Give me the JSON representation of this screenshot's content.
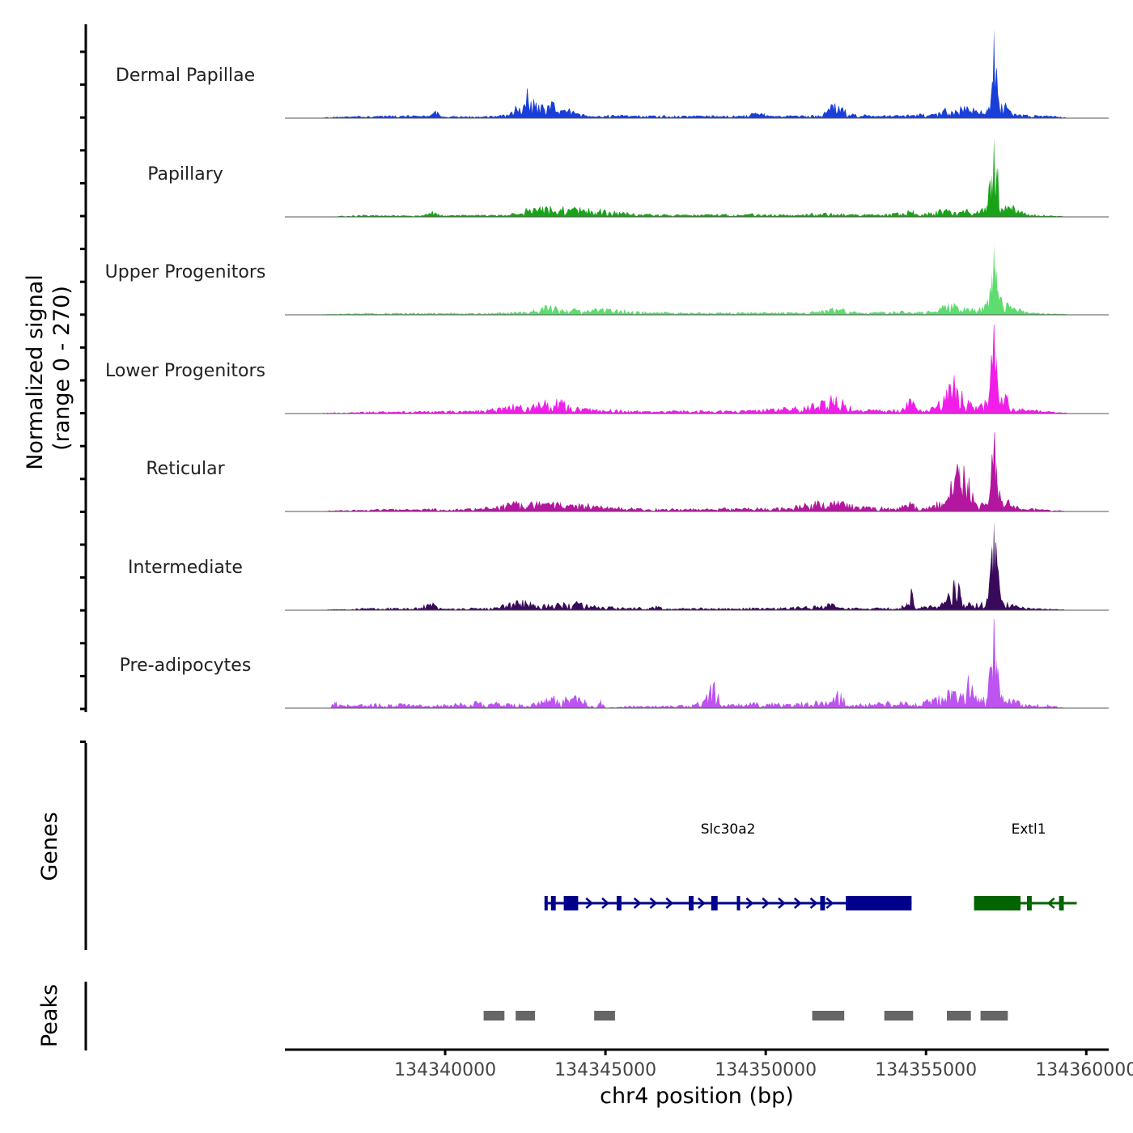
{
  "chart_data": {
    "type": "area",
    "title": "",
    "xlabel": "chr4 position (bp)",
    "ylabel_line1": "Normalized signal",
    "ylabel_line2": "(range 0 - 270)",
    "ylim": [
      0,
      270
    ],
    "xlim": [
      134335000,
      134360700
    ],
    "x_ticks": [
      134340000,
      134345000,
      134350000,
      134355000,
      134360000
    ],
    "x_tick_labels": [
      "134340000",
      "134345000",
      "134350000",
      "134355000",
      "134360000"
    ],
    "series": [
      {
        "name": "Dermal Papillae",
        "color": "#1a3fd9",
        "baseline": 3,
        "x": [
          134336200,
          134337300,
          134338400,
          134339500,
          134339700,
          134339900,
          134341200,
          134342000,
          134342200,
          134342550,
          134342800,
          134343100,
          134343300,
          134343600,
          134343900,
          134344200,
          134344500,
          134345200,
          134346200,
          134347100,
          134348200,
          134349200,
          134349950,
          134350300,
          134351200,
          134351800,
          134352100,
          134352600,
          134353300,
          134354200,
          134355200,
          134355600,
          134355900,
          134356300,
          134356600,
          134356900,
          134357060,
          134357120,
          134357200,
          134357300,
          134357450,
          134357700,
          134358200,
          134358900,
          134359400
        ],
        "values": [
          0,
          3,
          6,
          4,
          24,
          2,
          4,
          8,
          30,
          72,
          38,
          32,
          44,
          18,
          26,
          10,
          4,
          6,
          5,
          4,
          5,
          4,
          16,
          4,
          6,
          8,
          44,
          12,
          5,
          8,
          10,
          26,
          16,
          36,
          18,
          30,
          112,
          270,
          150,
          30,
          44,
          12,
          6,
          4,
          0
        ]
      },
      {
        "name": "Papillary",
        "color": "#1aa319",
        "baseline": 2,
        "x": [
          134336600,
          134337500,
          134339300,
          134339600,
          134339900,
          134341800,
          134342200,
          134342500,
          134343000,
          134343600,
          134344000,
          134344400,
          134344800,
          134346300,
          134347800,
          134349000,
          134350100,
          134350900,
          134351700,
          134352600,
          134353400,
          134354300,
          134354600,
          134354800,
          134355600,
          134355900,
          134356300,
          134356600,
          134356900,
          134357060,
          134357120,
          134357200,
          134357350,
          134357650,
          134357900,
          134358300,
          134359400
        ],
        "values": [
          0,
          4,
          2,
          16,
          3,
          4,
          10,
          20,
          24,
          26,
          26,
          20,
          18,
          6,
          5,
          6,
          7,
          4,
          10,
          6,
          5,
          10,
          22,
          4,
          22,
          12,
          18,
          14,
          38,
          128,
          240,
          150,
          20,
          32,
          14,
          6,
          0
        ]
      },
      {
        "name": "Upper Progenitors",
        "color": "#5ddc6f",
        "baseline": 2,
        "x": [
          134336200,
          134337500,
          134339000,
          134340800,
          134342300,
          134342800,
          134343100,
          134343300,
          134343600,
          134344000,
          134344300,
          134344800,
          134346300,
          134347800,
          134349000,
          134350500,
          134351200,
          134351800,
          134352200,
          134352700,
          134353500,
          134354300,
          134354600,
          134355400,
          134355700,
          134356000,
          134356300,
          134356600,
          134356900,
          134357060,
          134357120,
          134357200,
          134357400,
          134357700,
          134358000,
          134358300,
          134359400
        ],
        "values": [
          0,
          3,
          4,
          3,
          6,
          12,
          22,
          30,
          14,
          18,
          10,
          16,
          6,
          5,
          4,
          6,
          4,
          12,
          18,
          8,
          6,
          8,
          4,
          14,
          38,
          18,
          16,
          12,
          30,
          128,
          214,
          140,
          32,
          22,
          10,
          5,
          0
        ]
      },
      {
        "name": "Lower Progenitors",
        "color": "#f01ee8",
        "baseline": 2,
        "x": [
          134336200,
          134337700,
          134339200,
          134340900,
          134341900,
          134342200,
          134342600,
          134343100,
          134343300,
          134343600,
          134343900,
          134344300,
          134344800,
          134346300,
          134347800,
          134349000,
          134350700,
          134351500,
          134351800,
          134352100,
          134352400,
          134352800,
          134353700,
          134354300,
          134354500,
          134354900,
          134355300,
          134355600,
          134355900,
          134356300,
          134356600,
          134356900,
          134357060,
          134357120,
          134357200,
          134357400,
          134357550,
          134357700,
          134358100,
          134358600,
          134359400
        ],
        "values": [
          0,
          4,
          5,
          6,
          16,
          24,
          14,
          36,
          22,
          44,
          20,
          14,
          10,
          6,
          8,
          6,
          14,
          24,
          38,
          48,
          32,
          12,
          8,
          16,
          40,
          6,
          20,
          50,
          98,
          34,
          14,
          40,
          150,
          268,
          180,
          30,
          60,
          16,
          10,
          6,
          0
        ]
      },
      {
        "name": "Reticular",
        "color": "#b3179f",
        "baseline": 2,
        "x": [
          134336300,
          134337800,
          134339200,
          134339600,
          134339900,
          134341200,
          134341900,
          134342200,
          134342600,
          134343100,
          134343300,
          134343600,
          134343900,
          134344300,
          134344800,
          134346300,
          134347800,
          134349000,
          134350700,
          134351500,
          134351800,
          134352200,
          134352600,
          134353200,
          134354200,
          134354500,
          134354800,
          134355500,
          134355800,
          134356050,
          134356300,
          134356550,
          134356850,
          134357060,
          134357120,
          134357200,
          134357400,
          134357550,
          134357750,
          134358100,
          134359300
        ],
        "values": [
          0,
          5,
          4,
          10,
          3,
          8,
          20,
          24,
          22,
          26,
          20,
          30,
          22,
          20,
          14,
          6,
          6,
          8,
          10,
          24,
          30,
          26,
          22,
          10,
          12,
          26,
          4,
          28,
          76,
          140,
          90,
          18,
          26,
          140,
          220,
          150,
          18,
          30,
          14,
          8,
          0
        ]
      },
      {
        "name": "Intermediate",
        "color": "#3a0a5a",
        "baseline": 2,
        "x": [
          134336300,
          134337800,
          134339000,
          134339600,
          134339900,
          134341500,
          134342200,
          134342500,
          134342800,
          134343200,
          134343700,
          134344100,
          134344400,
          134344800,
          134346300,
          134346600,
          134346900,
          134347800,
          134349100,
          134350500,
          134351700,
          134352000,
          134352300,
          134353200,
          134354200,
          134354400,
          134354560,
          134354700,
          134355600,
          134355900,
          134356100,
          134356350,
          134356700,
          134356950,
          134357060,
          134357120,
          134357200,
          134357400,
          134357650,
          134358100,
          134359300
        ],
        "values": [
          0,
          5,
          4,
          18,
          3,
          6,
          22,
          26,
          18,
          14,
          20,
          22,
          18,
          8,
          6,
          12,
          3,
          5,
          4,
          6,
          10,
          20,
          6,
          5,
          6,
          24,
          54,
          4,
          20,
          94,
          44,
          18,
          16,
          30,
          200,
          270,
          170,
          20,
          16,
          6,
          0
        ]
      },
      {
        "name": "Pre-adipocytes",
        "color": "#bd53f0",
        "baseline": 0,
        "x": [
          134336400,
          134336560,
          134336800,
          134337100,
          134337800,
          134339200,
          134339800,
          134340600,
          134341000,
          134341600,
          134342000,
          134342400,
          134342700,
          134343100,
          134343500,
          134343900,
          134344200,
          134344400,
          134344700,
          134344850,
          134345000,
          134345800,
          134346800,
          134347600,
          134348100,
          134348370,
          134348600,
          134349100,
          134349400,
          134350900,
          134351300,
          134351900,
          134352350,
          134352500,
          134353800,
          134354200,
          134354500,
          134355000,
          134355500,
          134355800,
          134356100,
          134356300,
          134356600,
          134356900,
          134357060,
          134357120,
          134357200,
          134357400,
          134357700,
          134358000,
          134358800,
          134359400
        ],
        "values": [
          0,
          20,
          10,
          8,
          12,
          10,
          8,
          14,
          18,
          16,
          12,
          10,
          14,
          26,
          30,
          26,
          36,
          20,
          0,
          28,
          0,
          6,
          6,
          8,
          20,
          80,
          10,
          10,
          14,
          12,
          20,
          16,
          50,
          8,
          16,
          22,
          12,
          20,
          36,
          58,
          40,
          88,
          24,
          34,
          140,
          230,
          150,
          40,
          26,
          12,
          8,
          0
        ]
      }
    ],
    "genes_track_label": "Genes",
    "genes": [
      {
        "name": "Slc30a2",
        "color": "#00008b",
        "strand": "+",
        "start": 134343100,
        "end": 134354550,
        "exons": [
          [
            134343100,
            134343200
          ],
          [
            134343300,
            134343450
          ],
          [
            134343700,
            134344150
          ],
          [
            134345350,
            134345500
          ],
          [
            134347600,
            134347750
          ],
          [
            134348300,
            134348500
          ],
          [
            134349100,
            134349200
          ],
          [
            134351700,
            134351850
          ],
          [
            134352500,
            134354550
          ]
        ]
      },
      {
        "name": "Extl1",
        "color": "#006400",
        "strand": "-",
        "start": 134356500,
        "end": 134359400,
        "exons": [
          [
            134356500,
            134357950
          ],
          [
            134358150,
            134358300
          ],
          [
            134359150,
            134359300
          ]
        ]
      }
    ],
    "peaks_track_label": "Peaks",
    "peaks": [
      [
        134341200,
        134341850
      ],
      [
        134342200,
        134342800
      ],
      [
        134344650,
        134345300
      ],
      [
        134351450,
        134352450
      ],
      [
        134353700,
        134354600
      ],
      [
        134355650,
        134356400
      ],
      [
        134356700,
        134357550
      ]
    ]
  }
}
